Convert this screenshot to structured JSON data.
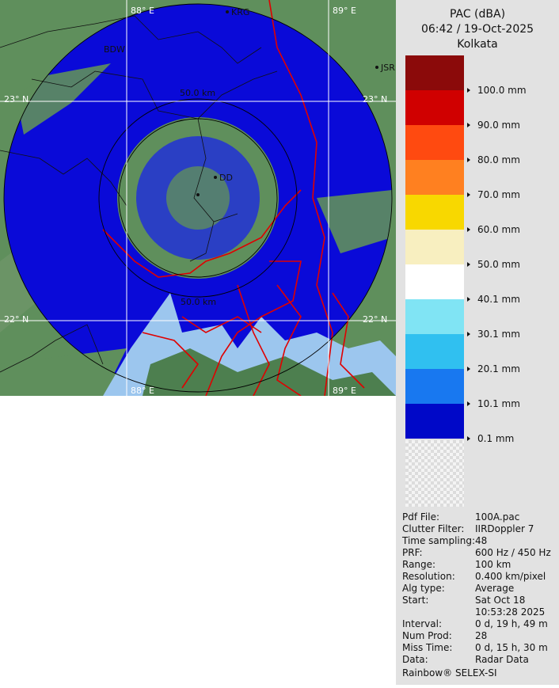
{
  "header": {
    "product": "PAC (dBA)",
    "time": "06:42 / 19-Oct-2025",
    "site": "Kolkata"
  },
  "map": {
    "lon_west": "88° E",
    "lon_east": "89° E",
    "lat_north": "23° N",
    "lat_south": "22° N",
    "ring_label": "50.0 km",
    "cities": [
      "KRG",
      "JSR",
      "BDW",
      "DD"
    ]
  },
  "legend": [
    {
      "color": "#8b0a0a",
      "label": "100.0 mm"
    },
    {
      "color": "#d00000",
      "label": "90.0 mm"
    },
    {
      "color": "#ff4a10",
      "label": "80.0 mm"
    },
    {
      "color": "#ff8020",
      "label": "70.0 mm"
    },
    {
      "color": "#f8d800",
      "label": "60.0 mm"
    },
    {
      "color": "#f8efc0",
      "label": "50.0 mm"
    },
    {
      "color": "#ffffff",
      "label": "40.1 mm"
    },
    {
      "color": "#80e4f4",
      "label": "30.1 mm"
    },
    {
      "color": "#30c0f0",
      "label": "20.1 mm"
    },
    {
      "color": "#1878f0",
      "label": "10.1 mm"
    },
    {
      "color": "#0008c8",
      "label": "0.1 mm"
    }
  ],
  "info": [
    {
      "key": "Pdf File:",
      "value": [
        "100A.pac"
      ]
    },
    {
      "key": "Clutter Filter:",
      "value": [
        "IIRDoppler 7"
      ]
    },
    {
      "key": "Time sampling:",
      "value": [
        "48"
      ]
    },
    {
      "key": "PRF:",
      "value": [
        "600 Hz / 450 Hz"
      ]
    },
    {
      "key": "Range:",
      "value": [
        "100 km"
      ]
    },
    {
      "key": "Resolution:",
      "value": [
        "0.400 km/pixel"
      ]
    },
    {
      "key": "Alg type:",
      "value": [
        "Average"
      ]
    },
    {
      "key": "Start:",
      "value": [
        "Sat Oct 18",
        "10:53:28 2025"
      ]
    },
    {
      "key": "Interval:",
      "value": [
        "0 d, 19 h, 49 m"
      ]
    },
    {
      "key": "Num Prod:",
      "value": [
        "28"
      ]
    },
    {
      "key": "Miss Time:",
      "value": [
        "0 d, 15 h, 30 m"
      ]
    },
    {
      "key": "Data:",
      "value": [
        "Radar Data"
      ]
    }
  ],
  "footer": "Rainbow® SELEX-SI"
}
